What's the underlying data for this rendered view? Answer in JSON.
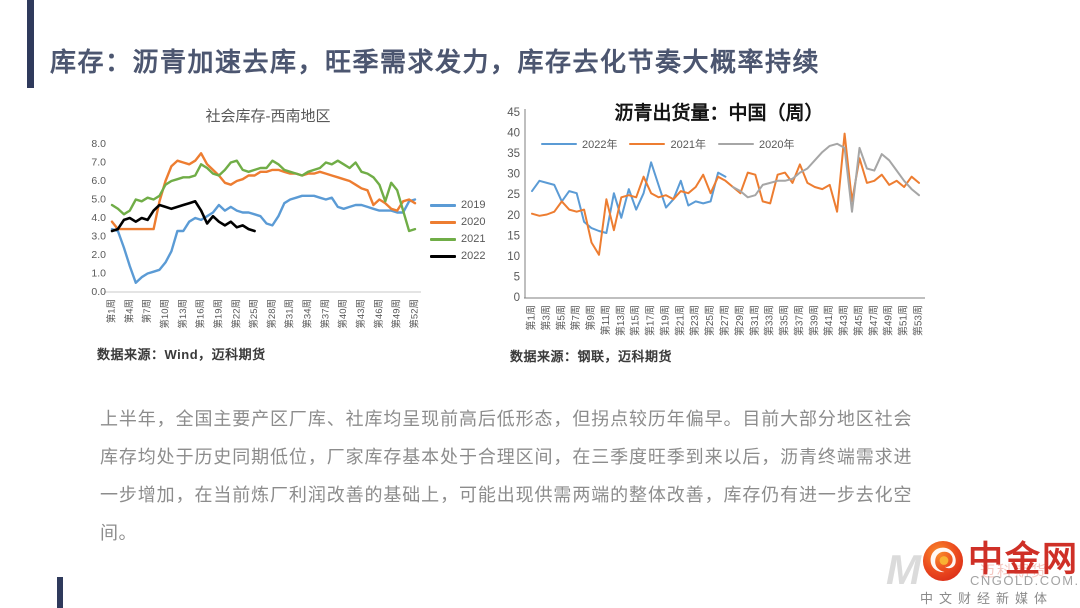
{
  "header": {
    "title": "库存：沥青加速去库，旺季需求发力，库存去化节奏大概率持续"
  },
  "colors": {
    "accent_bar": "#2F3A5C",
    "title_text": "#4C5670",
    "paragraph_text": "#8C8C8C",
    "logo_red": "#CF3027"
  },
  "chart_data": [
    {
      "type": "line",
      "title": "社会库存-西南地区",
      "weeks": 52,
      "ylim": [
        0,
        8
      ],
      "grid": false,
      "legend_position": "right",
      "y_ticks": [
        "8.0",
        "7.0",
        "6.0",
        "5.0",
        "4.0",
        "3.0",
        "2.0",
        "1.0",
        "0.0"
      ],
      "x_ticks": [
        "第1周",
        "第4周",
        "第7周",
        "第10周",
        "第13周",
        "第16周",
        "第19周",
        "第22周",
        "第25周",
        "第28周",
        "第31周",
        "第34周",
        "第37周",
        "第40周",
        "第43周",
        "第46周",
        "第49周",
        "第52周"
      ],
      "series": [
        {
          "name": "2019",
          "color": "#5B9BD5",
          "values": [
            3.4,
            3.3,
            2.4,
            1.4,
            0.5,
            0.8,
            1.0,
            1.1,
            1.2,
            1.6,
            2.2,
            3.3,
            3.3,
            3.8,
            4.0,
            3.9,
            4.1,
            4.3,
            4.7,
            4.4,
            4.6,
            4.4,
            4.3,
            4.3,
            4.2,
            4.1,
            3.7,
            3.6,
            4.1,
            4.8,
            5.0,
            5.1,
            5.2,
            5.2,
            5.2,
            5.1,
            5.0,
            5.1,
            4.6,
            4.5,
            4.6,
            4.7,
            4.7,
            4.6,
            4.5,
            4.4,
            4.4,
            4.4,
            4.3,
            4.3,
            4.9,
            5.0
          ]
        },
        {
          "name": "2020",
          "color": "#ED7D31",
          "values": [
            3.8,
            3.4,
            3.4,
            3.4,
            3.4,
            3.4,
            3.4,
            3.4,
            4.9,
            6.0,
            6.8,
            7.1,
            7.0,
            6.9,
            7.1,
            7.5,
            6.9,
            6.6,
            6.3,
            5.9,
            5.8,
            6.0,
            6.1,
            6.3,
            6.3,
            6.5,
            6.5,
            6.6,
            6.6,
            6.5,
            6.4,
            6.4,
            6.3,
            6.4,
            6.4,
            6.5,
            6.4,
            6.3,
            6.2,
            6.1,
            6.0,
            5.8,
            5.6,
            5.5,
            4.7,
            5.0,
            4.8,
            4.5,
            4.4,
            4.9,
            5.0,
            4.8
          ]
        },
        {
          "name": "2021",
          "color": "#70AD47",
          "values": [
            4.7,
            4.5,
            4.2,
            4.4,
            5.0,
            4.9,
            5.1,
            5.0,
            5.2,
            5.8,
            6.0,
            6.1,
            6.2,
            6.2,
            6.3,
            6.9,
            6.7,
            6.4,
            6.3,
            6.6,
            7.0,
            7.1,
            6.6,
            6.5,
            6.6,
            6.7,
            6.7,
            7.1,
            6.9,
            6.6,
            6.5,
            6.4,
            6.3,
            6.5,
            6.6,
            6.7,
            7.0,
            6.9,
            7.1,
            6.9,
            6.7,
            7.0,
            6.5,
            6.4,
            6.2,
            5.8,
            4.9,
            5.9,
            5.5,
            4.4,
            3.3,
            3.4
          ]
        },
        {
          "name": "2022",
          "color": "#000000",
          "values": [
            3.3,
            3.4,
            3.9,
            4.0,
            3.8,
            4.0,
            3.9,
            4.4,
            4.7,
            4.6,
            4.5,
            4.6,
            4.7,
            4.8,
            4.9,
            4.4,
            3.7,
            4.1,
            3.8,
            3.6,
            3.8,
            3.5,
            3.6,
            3.4,
            3.3
          ]
        }
      ]
    },
    {
      "type": "line",
      "title": "沥青出货量：中国（周）",
      "weeks": 53,
      "ylim": [
        0,
        45
      ],
      "grid": false,
      "legend_position": "top-left",
      "y_ticks": [
        "45",
        "40",
        "35",
        "30",
        "25",
        "20",
        "15",
        "10",
        "5",
        "0"
      ],
      "x_ticks": [
        "第1周",
        "第3周",
        "第5周",
        "第7周",
        "第9周",
        "第11周",
        "第13周",
        "第15周",
        "第17周",
        "第19周",
        "第21周",
        "第23周",
        "第25周",
        "第27周",
        "第29周",
        "第31周",
        "第33周",
        "第35周",
        "第37周",
        "第39周",
        "第41周",
        "第43周",
        "第45周",
        "第47周",
        "第49周",
        "第51周",
        "第53周"
      ],
      "series": [
        {
          "name": "2022年",
          "color": "#5B9BD5",
          "values": [
            26,
            28.5,
            28,
            27.5,
            23.5,
            26,
            25.5,
            18.5,
            17,
            16.3,
            15.8,
            25.5,
            19.5,
            26.5,
            21.5,
            25.5,
            33,
            27.5,
            22,
            24,
            28.5,
            22.5,
            23.5,
            23,
            23.5,
            30.5,
            29.5
          ]
        },
        {
          "name": "2021年",
          "color": "#ED7D31",
          "values": [
            20.5,
            20,
            20.3,
            21,
            23.5,
            21.5,
            21,
            21.5,
            13.5,
            10.5,
            24,
            16.5,
            24.5,
            25,
            24.5,
            29.5,
            25.5,
            24.5,
            25,
            24,
            26,
            25.5,
            27,
            30,
            25.5,
            29.5,
            28.5,
            27,
            25.5,
            30.5,
            30,
            23.5,
            23,
            30,
            30.5,
            28,
            32.5,
            28,
            27,
            26.5,
            27.5,
            21,
            40,
            23.5,
            34,
            28,
            28.5,
            30,
            27.5,
            28.5,
            27,
            29.5,
            28
          ]
        },
        {
          "name": "2020年",
          "color": "#A6A6A6",
          "values": [
            null,
            null,
            null,
            null,
            null,
            null,
            null,
            null,
            null,
            null,
            null,
            null,
            null,
            null,
            null,
            null,
            null,
            null,
            null,
            null,
            null,
            null,
            null,
            null,
            null,
            null,
            null,
            27,
            26,
            24.5,
            25,
            27.5,
            28,
            28.5,
            28.5,
            29,
            30.5,
            31.5,
            33.5,
            35.5,
            37,
            37.5,
            36.5,
            21,
            36.5,
            31.5,
            31,
            35,
            33.5,
            31,
            28.5,
            26.5,
            25
          ]
        }
      ]
    }
  ],
  "sources": {
    "left": "数据来源：Wind，迈科期货",
    "right": "数据来源：钢联，迈科期货"
  },
  "body": {
    "paragraph": "上半年，全国主要产区厂库、社库均呈现前高后低形态，但拐点较历年偏早。目前大部分地区社会库存均处于历史同期低位，厂家库存基本处于合理区间，在三季度旺季到来以后，沥青终端需求进一步增加，在当前炼厂利润改善的基础上，可能出现供需两端的整体改善，库存仍有进一步去化空间。"
  },
  "footer": {
    "brand": "中金网",
    "brand_domain": "CNGOLD.COM.CN",
    "tagline": "中文财经新媒体",
    "watermark_letter": "M",
    "watermark_text": "迈科期货"
  }
}
